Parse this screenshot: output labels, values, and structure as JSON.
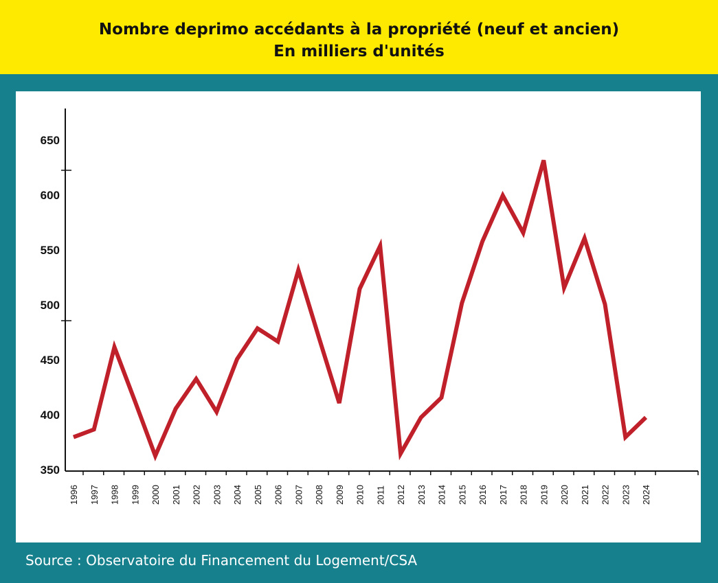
{
  "chart_data": {
    "type": "line",
    "title": "Nombre deprimo accédants à la propriété (neuf et ancien)",
    "subtitle": "En milliers d'unités",
    "xlabel": "",
    "ylabel": "",
    "ylim": [
      350,
      650
    ],
    "yticks": [
      "350",
      "400",
      "450",
      "500",
      "550",
      "600",
      "650"
    ],
    "categories": [
      "1996",
      "1997",
      "1998",
      "1999",
      "2000",
      "2001",
      "2002",
      "2003",
      "2004",
      "2005",
      "2006",
      "2007",
      "2008",
      "2009",
      "2010",
      "2011",
      "2012",
      "2013",
      "2014",
      "2015",
      "2016",
      "2017",
      "2018",
      "2019",
      "2020",
      "2021",
      "2022",
      "2023",
      "2024"
    ],
    "series": [
      {
        "name": "Primo-accédants",
        "color": "#c0202a",
        "values": [
          379,
          386,
          461,
          412,
          362,
          405,
          432,
          402,
          450,
          478,
          466,
          531,
          470,
          410,
          514,
          553,
          364,
          397,
          415,
          501,
          557,
          599,
          565,
          631,
          515,
          560,
          500,
          379,
          397
        ]
      }
    ],
    "grid": false,
    "legend": "none"
  },
  "source": "Source : Observatoire du Financement du Logement/CSA",
  "colors": {
    "header": "#fdea00",
    "background": "#17808d",
    "line": "#c0202a"
  }
}
